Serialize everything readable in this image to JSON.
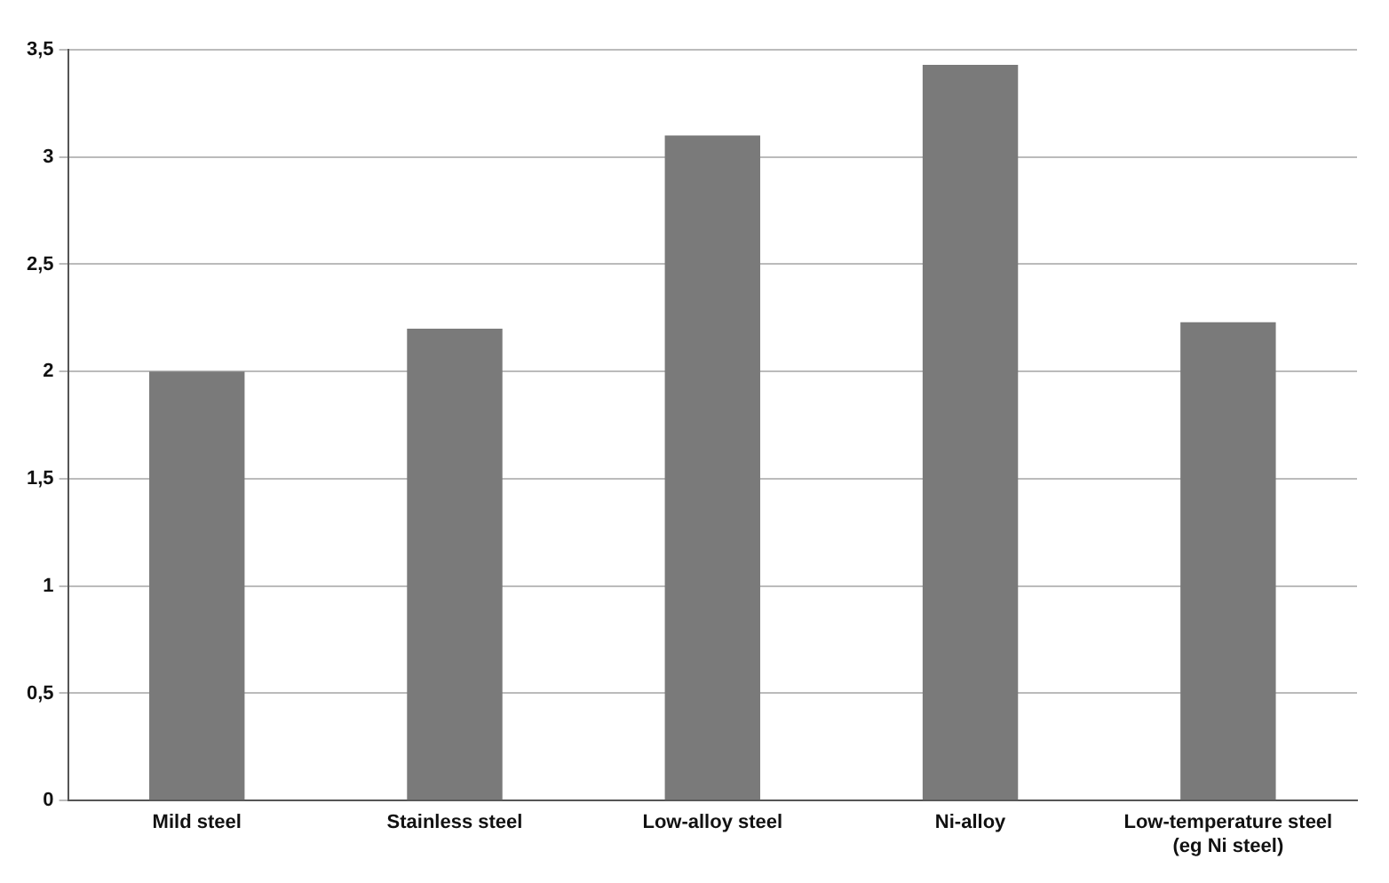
{
  "chart_data": {
    "type": "bar",
    "categories": [
      "Mild steel",
      "Stainless steel",
      "Low-alloy steel",
      "Ni-alloy",
      "Low-temperature steel (eg Ni steel)"
    ],
    "values": [
      2.0,
      2.2,
      3.1,
      3.43,
      2.23
    ],
    "color": "#7a7a7a",
    "ylim": [
      0,
      3.5
    ],
    "yticks": [
      0,
      {
        "value": 0.5,
        "label": "0,5"
      },
      1,
      {
        "value": 1.5,
        "label": "1,5"
      },
      2,
      {
        "value": 2.5,
        "label": "2,5"
      },
      3,
      {
        "value": 3.5,
        "label": "3,5"
      }
    ],
    "grid": "y",
    "legend": false
  }
}
